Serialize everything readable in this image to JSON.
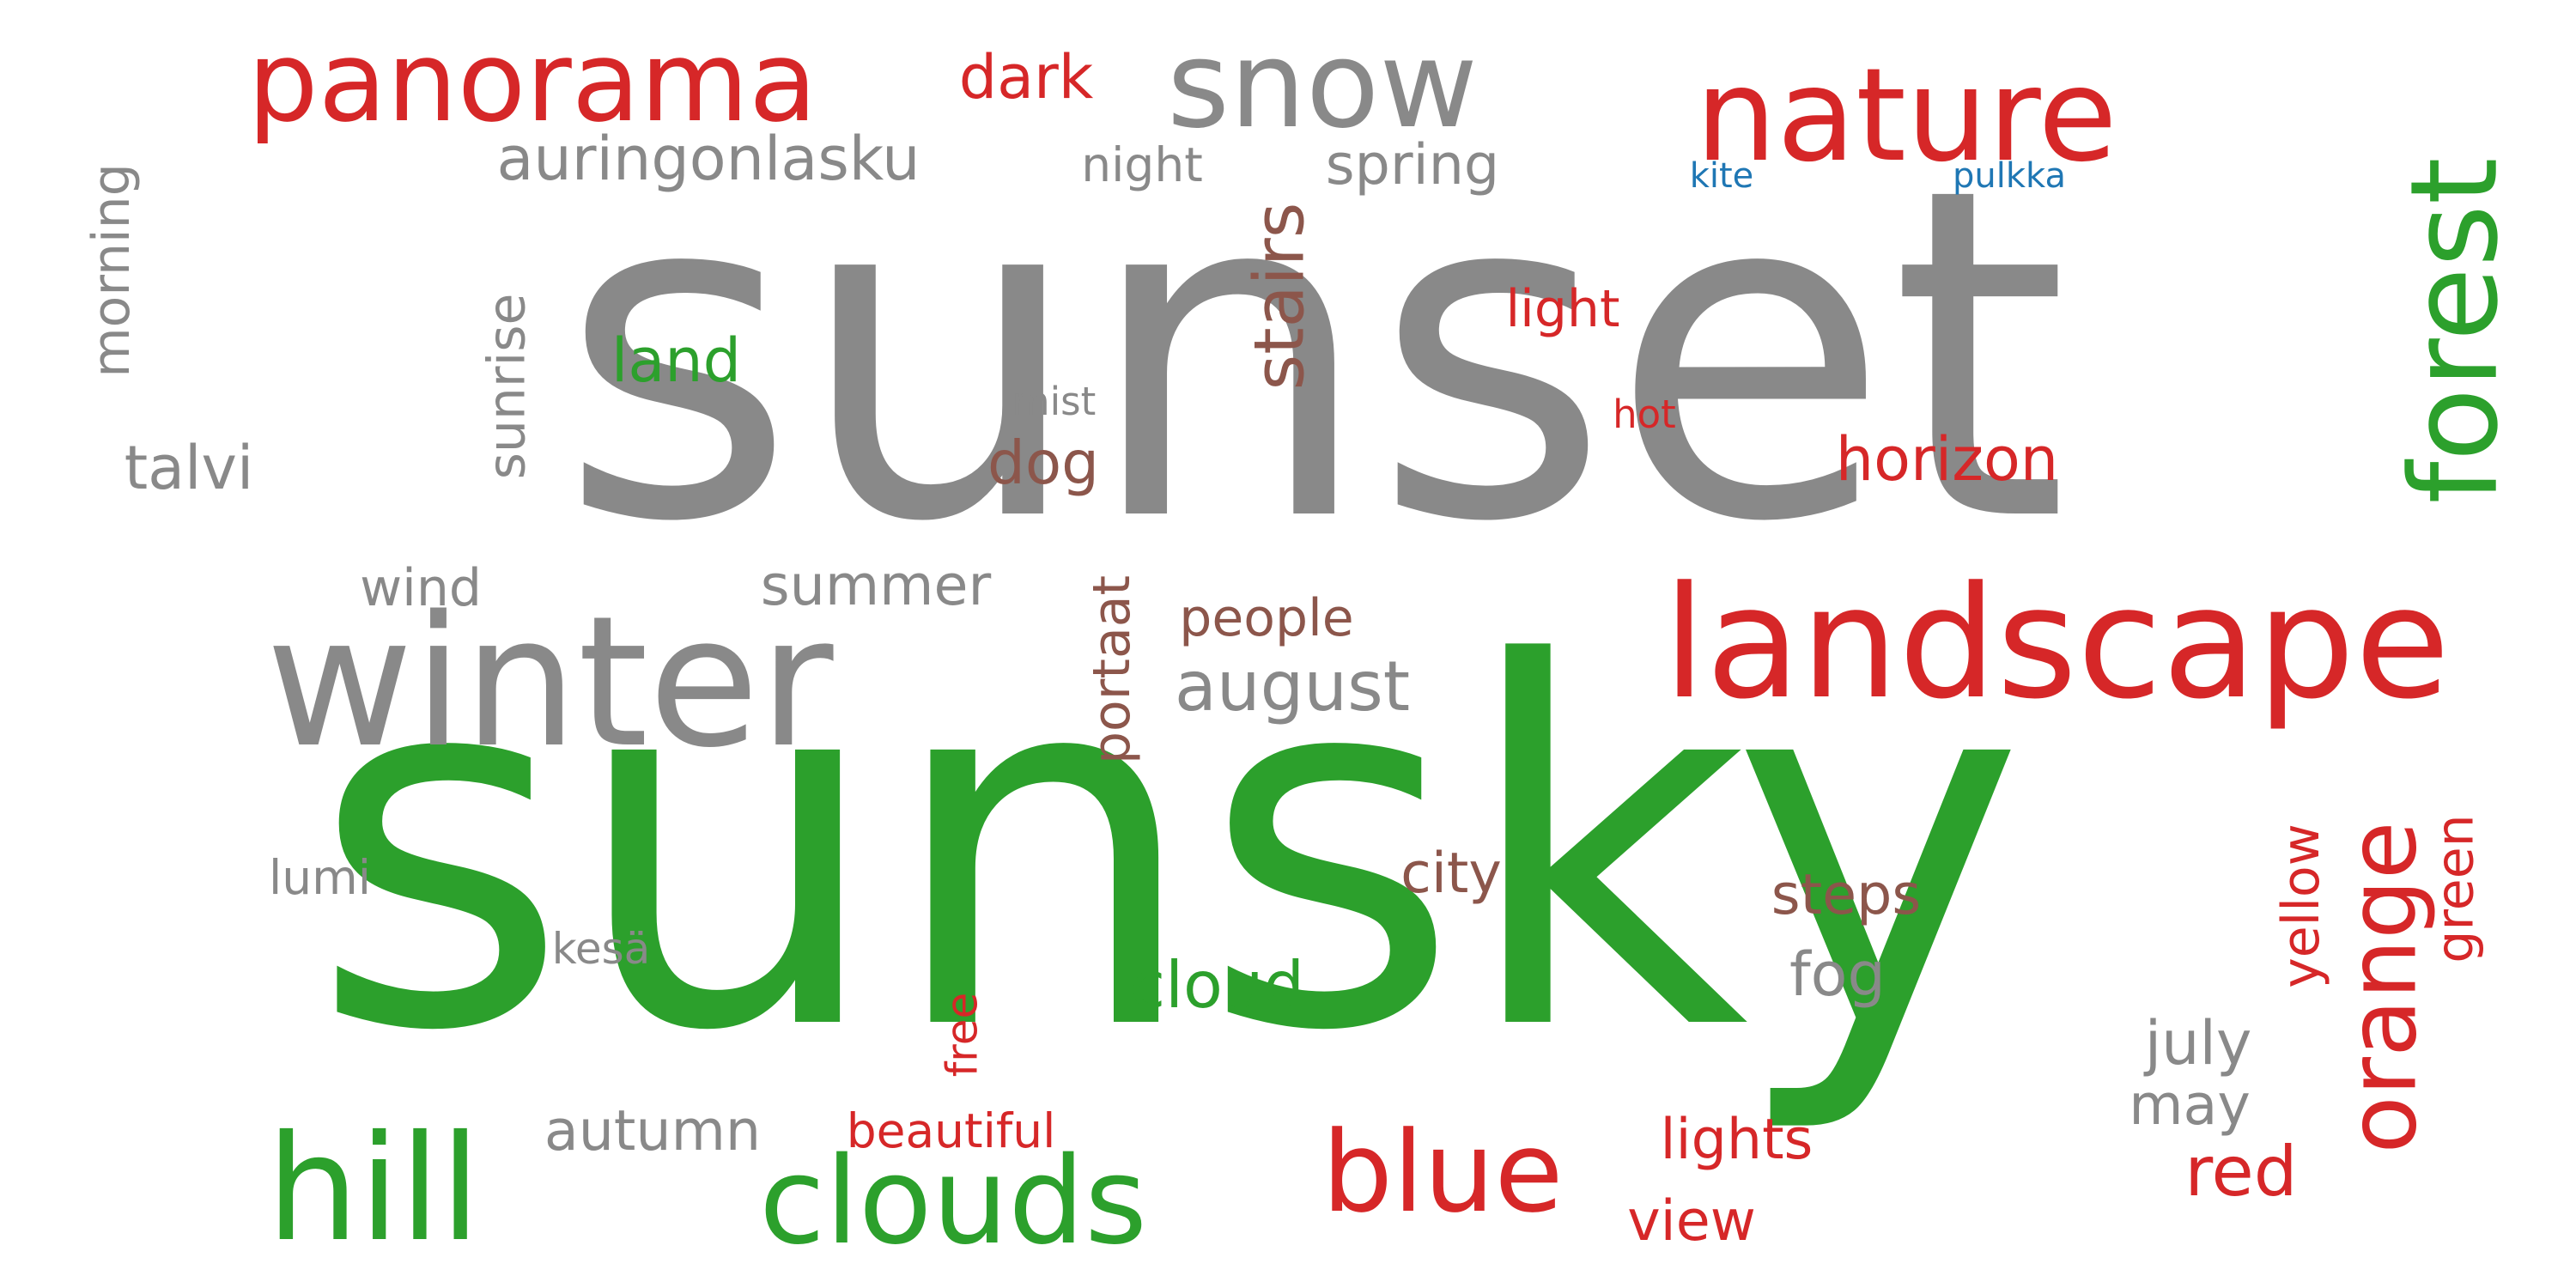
{
  "palette": {
    "gray": "#898989",
    "green": "#2ca02c",
    "red": "#d62728",
    "brown": "#8c564b",
    "blue": "#1f77b4"
  },
  "words": [
    {
      "id": "sunset",
      "text": "sunset",
      "color": "gray",
      "vertical": false
    },
    {
      "id": "sunsky",
      "text": "sunsky",
      "color": "green",
      "vertical": false
    },
    {
      "id": "winter",
      "text": "winter",
      "color": "gray",
      "vertical": false
    },
    {
      "id": "landscape",
      "text": "landscape",
      "color": "red",
      "vertical": false
    },
    {
      "id": "nature",
      "text": "nature",
      "color": "red",
      "vertical": false
    },
    {
      "id": "panorama",
      "text": "panorama",
      "color": "red",
      "vertical": false
    },
    {
      "id": "snow",
      "text": "snow",
      "color": "gray",
      "vertical": false
    },
    {
      "id": "forest",
      "text": "forest",
      "color": "green",
      "vertical": true
    },
    {
      "id": "orange",
      "text": "orange",
      "color": "red",
      "vertical": true
    },
    {
      "id": "hill",
      "text": "hill",
      "color": "green",
      "vertical": false
    },
    {
      "id": "clouds",
      "text": "clouds",
      "color": "green",
      "vertical": false
    },
    {
      "id": "blue",
      "text": "blue",
      "color": "red",
      "vertical": false
    },
    {
      "id": "auringonlasku",
      "text": "auringonlasku",
      "color": "gray",
      "vertical": false
    },
    {
      "id": "august",
      "text": "august",
      "color": "gray",
      "vertical": false
    },
    {
      "id": "stairs",
      "text": "stairs",
      "color": "brown",
      "vertical": true
    },
    {
      "id": "dark",
      "text": "dark",
      "color": "red",
      "vertical": false
    },
    {
      "id": "night",
      "text": "night",
      "color": "gray",
      "vertical": false
    },
    {
      "id": "spring",
      "text": "spring",
      "color": "gray",
      "vertical": false
    },
    {
      "id": "kite",
      "text": "kite",
      "color": "blue",
      "vertical": false
    },
    {
      "id": "pulkka",
      "text": "pulkka",
      "color": "blue",
      "vertical": false
    },
    {
      "id": "morning",
      "text": "morning",
      "color": "gray",
      "vertical": true
    },
    {
      "id": "sunrise",
      "text": "sunrise",
      "color": "gray",
      "vertical": true
    },
    {
      "id": "land",
      "text": "land",
      "color": "green",
      "vertical": false
    },
    {
      "id": "light",
      "text": "light",
      "color": "red",
      "vertical": false
    },
    {
      "id": "mist",
      "text": "mist",
      "color": "gray",
      "vertical": false
    },
    {
      "id": "hot",
      "text": "hot",
      "color": "red",
      "vertical": false
    },
    {
      "id": "talvi",
      "text": "talvi",
      "color": "gray",
      "vertical": false
    },
    {
      "id": "dog",
      "text": "dog",
      "color": "brown",
      "vertical": false
    },
    {
      "id": "horizon",
      "text": "horizon",
      "color": "red",
      "vertical": false
    },
    {
      "id": "wind",
      "text": "wind",
      "color": "gray",
      "vertical": false
    },
    {
      "id": "summer",
      "text": "summer",
      "color": "gray",
      "vertical": false
    },
    {
      "id": "portaat",
      "text": "portaat",
      "color": "brown",
      "vertical": true
    },
    {
      "id": "people",
      "text": "people",
      "color": "brown",
      "vertical": false
    },
    {
      "id": "city",
      "text": "city",
      "color": "brown",
      "vertical": false
    },
    {
      "id": "steps",
      "text": "steps",
      "color": "brown",
      "vertical": false
    },
    {
      "id": "fog",
      "text": "fog",
      "color": "gray",
      "vertical": false
    },
    {
      "id": "yellow",
      "text": "yellow",
      "color": "red",
      "vertical": true
    },
    {
      "id": "green",
      "text": "green",
      "color": "red",
      "vertical": true
    },
    {
      "id": "lumi",
      "text": "lumi",
      "color": "gray",
      "vertical": false
    },
    {
      "id": "kesa",
      "text": "kesä",
      "color": "gray",
      "vertical": false
    },
    {
      "id": "free",
      "text": "free",
      "color": "red",
      "vertical": true
    },
    {
      "id": "cloud",
      "text": "cloud",
      "color": "green",
      "vertical": false
    },
    {
      "id": "july",
      "text": "july",
      "color": "gray",
      "vertical": false
    },
    {
      "id": "may",
      "text": "may",
      "color": "gray",
      "vertical": false
    },
    {
      "id": "autumn",
      "text": "autumn",
      "color": "gray",
      "vertical": false
    },
    {
      "id": "beautiful",
      "text": "beautiful",
      "color": "red",
      "vertical": false
    },
    {
      "id": "lights",
      "text": "lights",
      "color": "red",
      "vertical": false
    },
    {
      "id": "red",
      "text": "red",
      "color": "red",
      "vertical": false
    },
    {
      "id": "view",
      "text": "view",
      "color": "red",
      "vertical": false
    }
  ]
}
